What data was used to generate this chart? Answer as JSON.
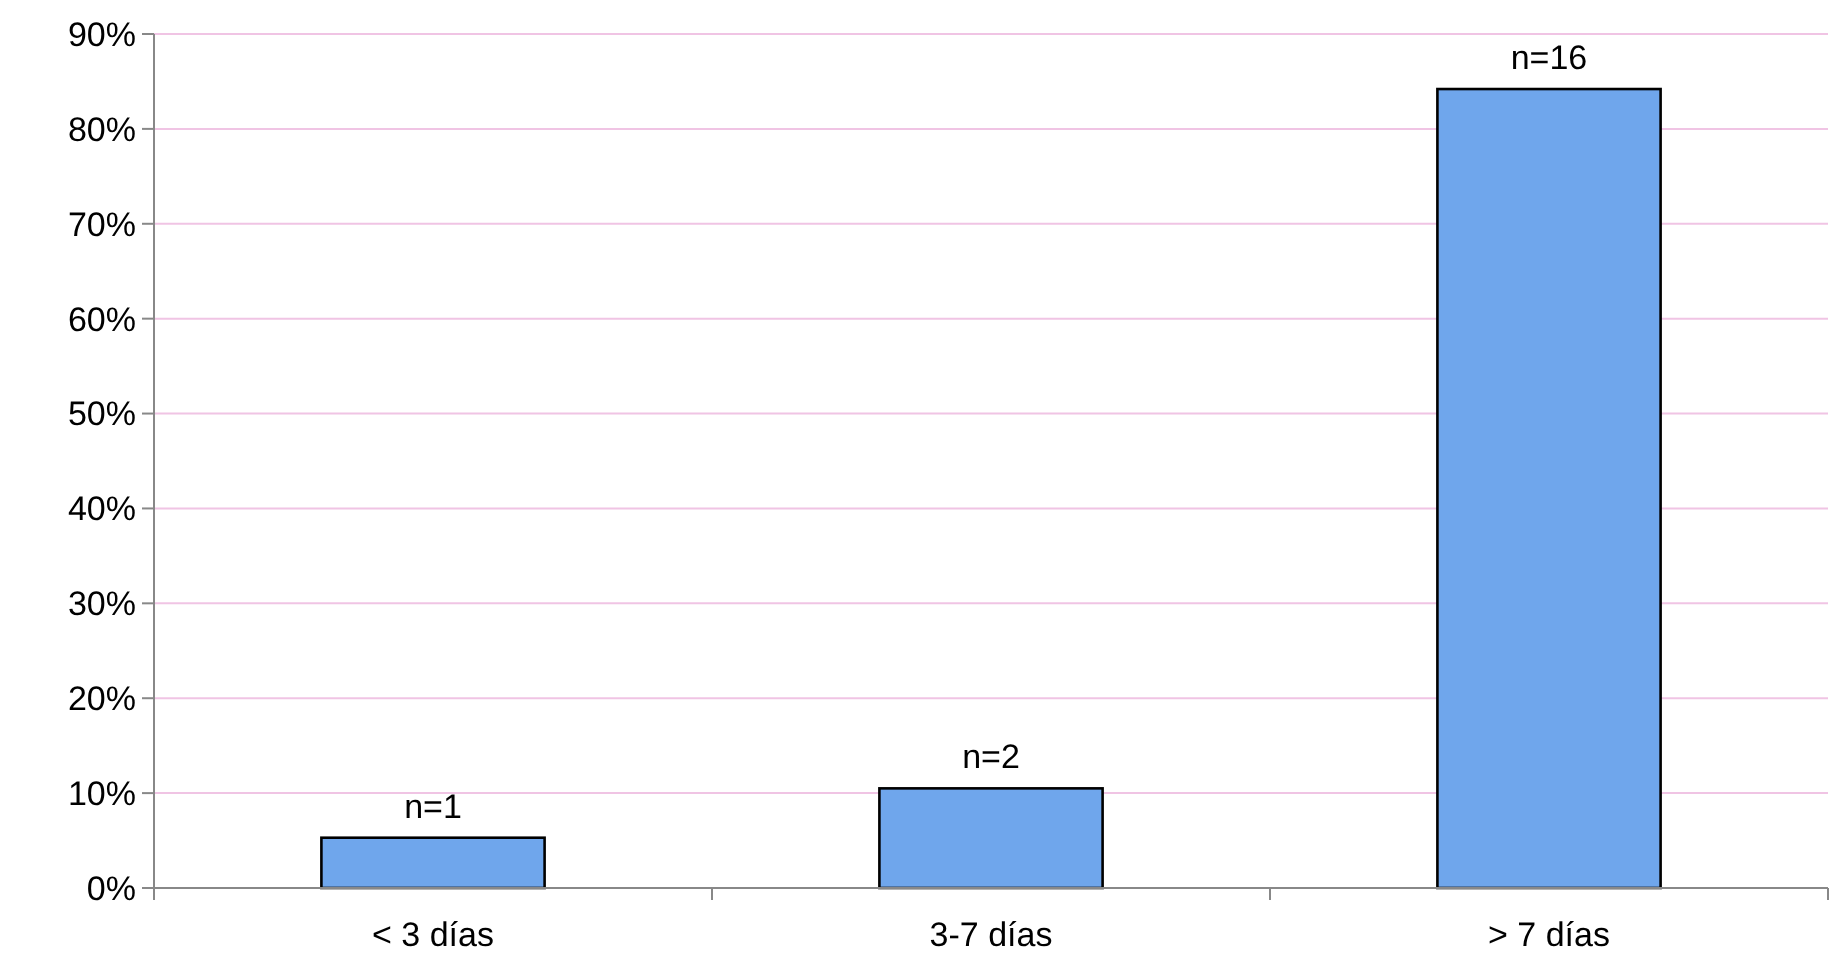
{
  "chart_data": {
    "type": "bar",
    "categories": [
      "< 3 días",
      "3-7 días",
      "> 7 días"
    ],
    "values": [
      5.3,
      10.5,
      84.2
    ],
    "annotations": [
      {
        "text": "n=1",
        "x": "< 3 días",
        "y": 5.3
      },
      {
        "text": "n=2",
        "x": "3-7 días",
        "y": 10.5
      },
      {
        "text": "n=16",
        "x": "> 7 días",
        "y": 84.2
      }
    ],
    "color": "#6fa6ec",
    "ylim": [
      0,
      90
    ],
    "yticks": [
      {
        "value": 0,
        "label": "0%"
      },
      {
        "value": 10,
        "label": "10%"
      },
      {
        "value": 20,
        "label": "20%"
      },
      {
        "value": 30,
        "label": "30%"
      },
      {
        "value": 40,
        "label": "40%"
      },
      {
        "value": 50,
        "label": "50%"
      },
      {
        "value": 60,
        "label": "60%"
      },
      {
        "value": 70,
        "label": "70%"
      },
      {
        "value": 80,
        "label": "80%"
      },
      {
        "value": 90,
        "label": "90%"
      }
    ],
    "grid": "y"
  }
}
